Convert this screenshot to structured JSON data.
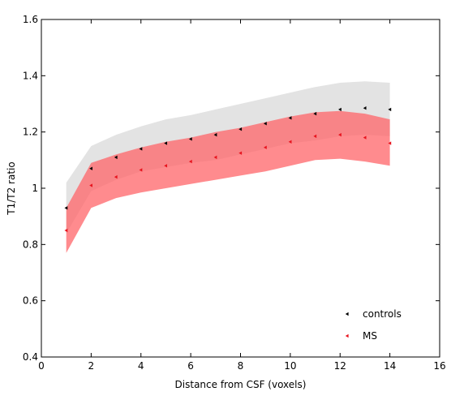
{
  "chart_data": {
    "type": "line",
    "title": "",
    "xlabel": "Distance from CSF (voxels)",
    "ylabel": "T1/T2 ratio",
    "xlim": [
      0,
      16
    ],
    "ylim": [
      0.4,
      1.6
    ],
    "xticks": [
      0,
      2,
      4,
      6,
      8,
      10,
      12,
      14,
      16
    ],
    "yticks": [
      0.4,
      0.6,
      0.8,
      1,
      1.2,
      1.4,
      1.6
    ],
    "xtick_labels": [
      "0",
      "2",
      "4",
      "6",
      "8",
      "10",
      "12",
      "14",
      "16"
    ],
    "ytick_labels": [
      "0.4",
      "0.6",
      "0.8",
      "1",
      "1.2",
      "1.4",
      "1.6"
    ],
    "grid": false,
    "legend_position": "bottom-right",
    "x": [
      1,
      2,
      3,
      4,
      5,
      6,
      7,
      8,
      9,
      10,
      11,
      12,
      13,
      14
    ],
    "series": [
      {
        "name": "controls",
        "color": "#000000",
        "band_color": "#e3e3e3",
        "values": [
          0.93,
          1.07,
          1.11,
          1.14,
          1.16,
          1.175,
          1.19,
          1.21,
          1.23,
          1.25,
          1.265,
          1.28,
          1.285,
          1.28
        ],
        "upper": [
          1.02,
          1.15,
          1.19,
          1.22,
          1.245,
          1.26,
          1.28,
          1.3,
          1.32,
          1.34,
          1.36,
          1.375,
          1.38,
          1.375
        ],
        "lower": [
          0.84,
          0.99,
          1.03,
          1.06,
          1.075,
          1.09,
          1.1,
          1.12,
          1.14,
          1.16,
          1.17,
          1.185,
          1.19,
          1.185
        ]
      },
      {
        "name": "MS",
        "color": "#e8141e",
        "band_color": "#ff6468",
        "values": [
          0.85,
          1.01,
          1.04,
          1.065,
          1.08,
          1.095,
          1.11,
          1.125,
          1.145,
          1.165,
          1.185,
          1.19,
          1.18,
          1.16
        ],
        "upper": [
          0.93,
          1.09,
          1.12,
          1.145,
          1.165,
          1.18,
          1.2,
          1.215,
          1.235,
          1.255,
          1.27,
          1.275,
          1.265,
          1.245
        ],
        "lower": [
          0.77,
          0.93,
          0.965,
          0.985,
          1.0,
          1.015,
          1.03,
          1.045,
          1.06,
          1.08,
          1.1,
          1.105,
          1.095,
          1.08
        ]
      }
    ]
  }
}
